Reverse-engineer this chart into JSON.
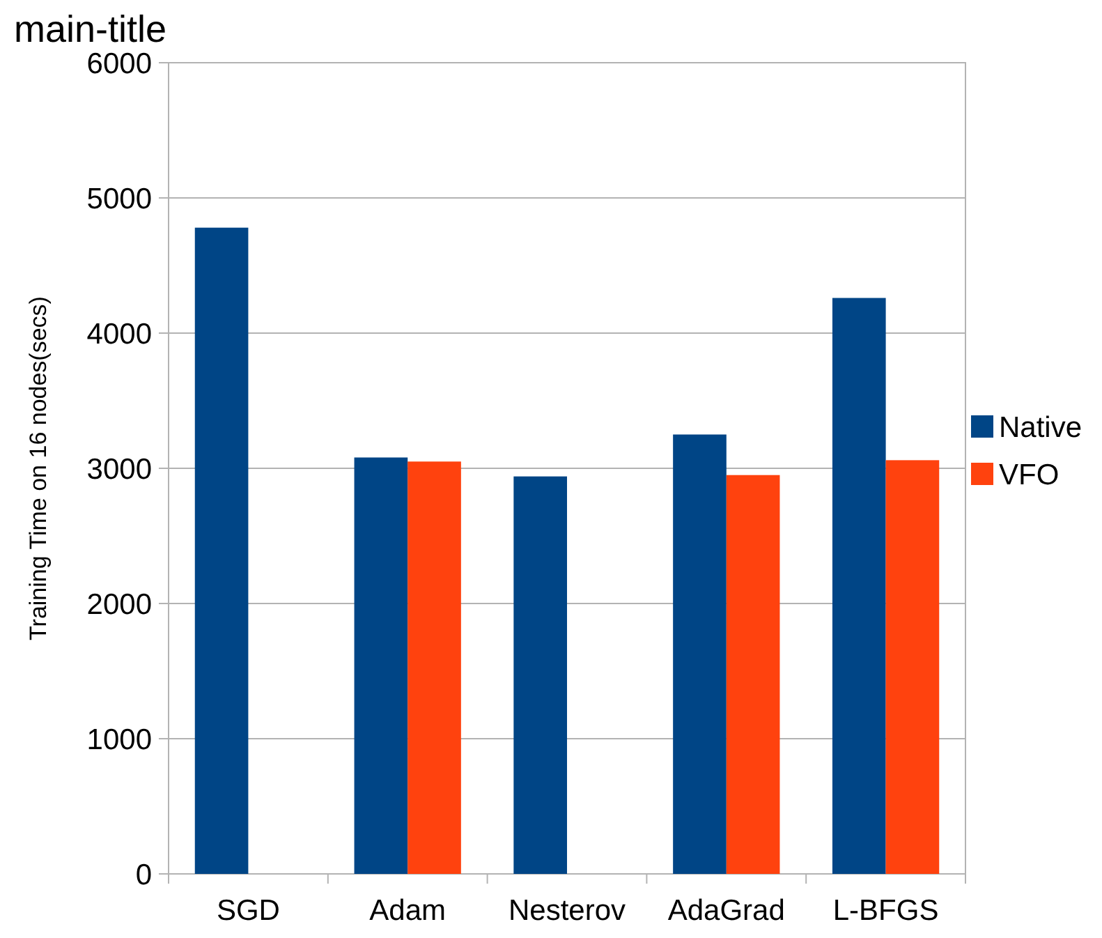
{
  "chart_data": {
    "type": "bar",
    "title": "main-title",
    "ylabel": "Training Time on 16 nodes(secs)",
    "categories": [
      "SGD",
      "Adam",
      "Nesterov",
      "AdaGrad",
      "L-BFGS"
    ],
    "series": [
      {
        "name": "Native",
        "color": "#004586",
        "values": [
          4780,
          3080,
          2940,
          3250,
          4260
        ]
      },
      {
        "name": "VFO",
        "color": "#ff420e",
        "values": [
          null,
          3050,
          null,
          2950,
          3060
        ]
      }
    ],
    "ylim": [
      0,
      6000
    ],
    "yticks": [
      0,
      1000,
      2000,
      3000,
      4000,
      5000,
      6000
    ],
    "grid": "y",
    "legend": "right"
  }
}
